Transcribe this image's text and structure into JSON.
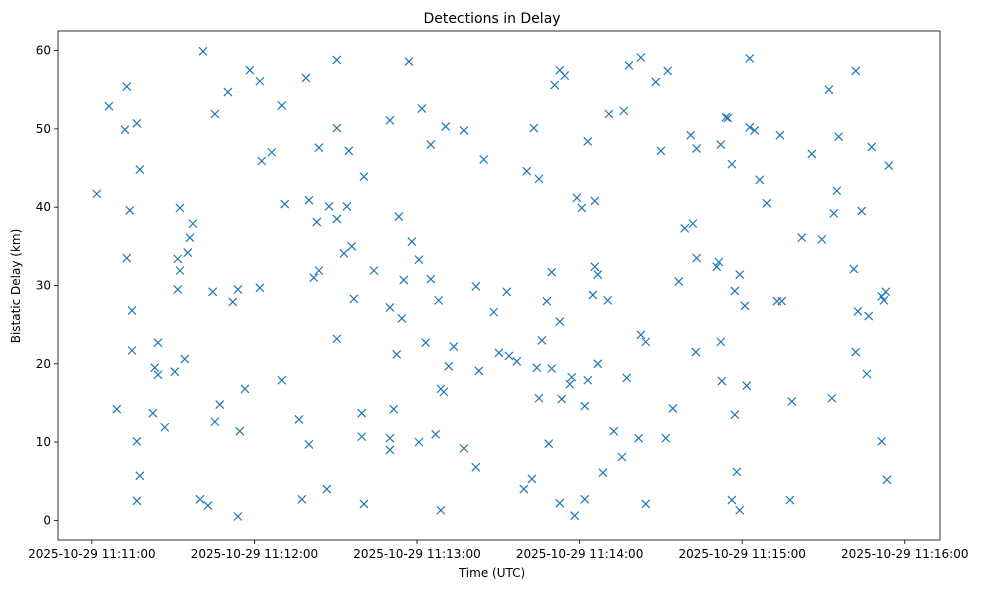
{
  "chart_data": {
    "type": "scatter",
    "title": "Detections in Delay",
    "xlabel": "Time (UTC)",
    "ylabel": "Bistatic Delay (km)",
    "x_unit": "seconds after 2025-10-29 11:11:00",
    "xlim": [
      -12.5,
      313
    ],
    "ylim": [
      -2.5,
      62.5
    ],
    "xticks": [
      0,
      60,
      120,
      180,
      240,
      300
    ],
    "xtick_labels": [
      "2025-10-29 11:11:00",
      "2025-10-29 11:12:00",
      "2025-10-29 11:13:00",
      "2025-10-29 11:14:00",
      "2025-10-29 11:15:00",
      "2025-10-29 11:16:00"
    ],
    "yticks": [
      0,
      10,
      20,
      30,
      40,
      50,
      60
    ],
    "ytick_labels": [
      "0",
      "10",
      "20",
      "30",
      "40",
      "50",
      "60"
    ],
    "grid": false,
    "marker": "x",
    "color": "#1f77b4",
    "points": [
      [
        1.8,
        41.7
      ],
      [
        6.3,
        52.9
      ],
      [
        9.2,
        14.2
      ],
      [
        12.2,
        49.9
      ],
      [
        12.9,
        55.4
      ],
      [
        12.9,
        33.5
      ],
      [
        14.0,
        39.6
      ],
      [
        14.8,
        26.8
      ],
      [
        14.8,
        21.7
      ],
      [
        16.6,
        50.7
      ],
      [
        16.6,
        10.1
      ],
      [
        16.6,
        2.5
      ],
      [
        17.7,
        44.8
      ],
      [
        17.7,
        5.7
      ],
      [
        22.5,
        13.7
      ],
      [
        23.2,
        19.5
      ],
      [
        24.4,
        22.7
      ],
      [
        24.4,
        18.6
      ],
      [
        26.9,
        11.9
      ],
      [
        30.6,
        19.0
      ],
      [
        31.7,
        33.4
      ],
      [
        31.7,
        29.5
      ],
      [
        32.5,
        39.9
      ],
      [
        32.5,
        31.9
      ],
      [
        34.3,
        20.6
      ],
      [
        35.4,
        34.2
      ],
      [
        36.2,
        36.1
      ],
      [
        37.3,
        37.9
      ],
      [
        39.9,
        2.7
      ],
      [
        41.0,
        59.9
      ],
      [
        42.8,
        1.9
      ],
      [
        44.6,
        29.2
      ],
      [
        45.4,
        51.9
      ],
      [
        45.4,
        12.6
      ],
      [
        47.2,
        14.8
      ],
      [
        50.2,
        54.7
      ],
      [
        52.0,
        27.9
      ],
      [
        53.9,
        29.5
      ],
      [
        53.9,
        0.5
      ],
      [
        54.6,
        11.4
      ],
      [
        56.5,
        16.8
      ],
      [
        58.3,
        57.5
      ],
      [
        62.0,
        56.1
      ],
      [
        62.0,
        29.7
      ],
      [
        62.7,
        45.9
      ],
      [
        66.4,
        47.0
      ],
      [
        70.1,
        53.0
      ],
      [
        70.1,
        17.9
      ],
      [
        71.2,
        40.4
      ],
      [
        76.4,
        12.9
      ],
      [
        77.5,
        2.7
      ],
      [
        79.0,
        56.5
      ],
      [
        80.1,
        40.9
      ],
      [
        80.1,
        9.7
      ],
      [
        81.9,
        31.0
      ],
      [
        83.0,
        38.1
      ],
      [
        83.8,
        47.6
      ],
      [
        83.8,
        31.9
      ],
      [
        86.7,
        4.0
      ],
      [
        87.5,
        40.1
      ],
      [
        90.4,
        58.8
      ],
      [
        90.4,
        50.1
      ],
      [
        90.4,
        38.5
      ],
      [
        90.4,
        23.2
      ],
      [
        93.0,
        34.1
      ],
      [
        94.1,
        40.1
      ],
      [
        94.8,
        47.2
      ],
      [
        95.9,
        35.0
      ],
      [
        96.7,
        28.3
      ],
      [
        99.6,
        10.7
      ],
      [
        99.6,
        13.7
      ],
      [
        100.4,
        43.9
      ],
      [
        100.4,
        2.1
      ],
      [
        104.1,
        31.9
      ],
      [
        110.0,
        51.1
      ],
      [
        110.0,
        27.2
      ],
      [
        110.0,
        10.5
      ],
      [
        110.0,
        9.0
      ],
      [
        111.4,
        14.2
      ],
      [
        112.5,
        21.2
      ],
      [
        113.3,
        38.8
      ],
      [
        114.4,
        25.8
      ],
      [
        115.1,
        30.7
      ],
      [
        117.0,
        58.6
      ],
      [
        118.1,
        35.6
      ],
      [
        120.7,
        33.3
      ],
      [
        120.7,
        10.0
      ],
      [
        121.8,
        52.6
      ],
      [
        123.2,
        22.7
      ],
      [
        125.1,
        48.0
      ],
      [
        125.1,
        30.8
      ],
      [
        126.9,
        11.0
      ],
      [
        128.0,
        28.1
      ],
      [
        128.8,
        16.8
      ],
      [
        128.8,
        1.3
      ],
      [
        129.9,
        16.4
      ],
      [
        130.6,
        50.3
      ],
      [
        131.7,
        19.7
      ],
      [
        133.6,
        22.2
      ],
      [
        137.3,
        49.8
      ],
      [
        137.3,
        9.2
      ],
      [
        141.7,
        29.9
      ],
      [
        141.7,
        6.8
      ],
      [
        142.8,
        19.1
      ],
      [
        144.6,
        46.1
      ],
      [
        148.3,
        26.6
      ],
      [
        150.2,
        21.4
      ],
      [
        153.1,
        29.2
      ],
      [
        153.9,
        21.0
      ],
      [
        156.8,
        20.3
      ],
      [
        159.4,
        4.0
      ],
      [
        160.5,
        44.6
      ],
      [
        162.4,
        5.3
      ],
      [
        163.1,
        50.1
      ],
      [
        164.2,
        19.5
      ],
      [
        165.0,
        15.6
      ],
      [
        165.0,
        43.6
      ],
      [
        166.1,
        23.0
      ],
      [
        167.9,
        28.0
      ],
      [
        168.6,
        9.8
      ],
      [
        169.7,
        31.7
      ],
      [
        169.7,
        19.4
      ],
      [
        170.8,
        55.6
      ],
      [
        172.7,
        57.5
      ],
      [
        172.7,
        25.4
      ],
      [
        172.7,
        2.2
      ],
      [
        173.4,
        15.5
      ],
      [
        174.5,
        56.8
      ],
      [
        176.4,
        17.4
      ],
      [
        177.1,
        18.3
      ],
      [
        178.2,
        0.6
      ],
      [
        179.0,
        41.2
      ],
      [
        180.8,
        39.9
      ],
      [
        181.9,
        14.6
      ],
      [
        181.9,
        2.7
      ],
      [
        183.0,
        48.4
      ],
      [
        183.0,
        17.9
      ],
      [
        184.9,
        28.8
      ],
      [
        185.6,
        40.8
      ],
      [
        185.6,
        32.4
      ],
      [
        186.7,
        31.4
      ],
      [
        186.7,
        20.0
      ],
      [
        188.6,
        6.1
      ],
      [
        190.4,
        28.1
      ],
      [
        190.8,
        51.9
      ],
      [
        192.6,
        11.4
      ],
      [
        195.6,
        8.1
      ],
      [
        196.3,
        52.3
      ],
      [
        197.4,
        18.2
      ],
      [
        198.2,
        58.1
      ],
      [
        201.8,
        10.5
      ],
      [
        202.6,
        59.1
      ],
      [
        202.6,
        23.7
      ],
      [
        204.4,
        22.8
      ],
      [
        204.4,
        2.1
      ],
      [
        208.1,
        56.0
      ],
      [
        210.0,
        47.2
      ],
      [
        211.8,
        10.5
      ],
      [
        212.5,
        57.4
      ],
      [
        214.4,
        14.3
      ],
      [
        216.6,
        30.5
      ],
      [
        218.8,
        37.3
      ],
      [
        221.0,
        49.2
      ],
      [
        221.8,
        37.9
      ],
      [
        222.9,
        21.5
      ],
      [
        223.2,
        47.5
      ],
      [
        223.2,
        33.5
      ],
      [
        230.6,
        32.4
      ],
      [
        231.4,
        33.0
      ],
      [
        232.1,
        48.0
      ],
      [
        232.1,
        22.8
      ],
      [
        232.5,
        17.8
      ],
      [
        234.0,
        51.5
      ],
      [
        234.7,
        51.4
      ],
      [
        236.2,
        45.5
      ],
      [
        236.2,
        2.6
      ],
      [
        237.3,
        29.3
      ],
      [
        237.3,
        13.5
      ],
      [
        238.0,
        6.2
      ],
      [
        239.1,
        31.4
      ],
      [
        239.1,
        1.3
      ],
      [
        241.0,
        27.4
      ],
      [
        241.7,
        17.2
      ],
      [
        242.8,
        50.2
      ],
      [
        242.8,
        59.0
      ],
      [
        244.6,
        49.8
      ],
      [
        246.5,
        43.5
      ],
      [
        249.1,
        40.5
      ],
      [
        252.8,
        28.0
      ],
      [
        253.9,
        49.2
      ],
      [
        254.6,
        28.0
      ],
      [
        257.6,
        2.6
      ],
      [
        258.3,
        15.2
      ],
      [
        262.0,
        36.1
      ],
      [
        265.7,
        46.8
      ],
      [
        269.4,
        35.9
      ],
      [
        272.0,
        55.0
      ],
      [
        273.1,
        15.6
      ],
      [
        273.8,
        39.2
      ],
      [
        274.9,
        42.1
      ],
      [
        275.6,
        49.0
      ],
      [
        281.2,
        32.1
      ],
      [
        281.9,
        57.4
      ],
      [
        281.9,
        21.5
      ],
      [
        282.7,
        26.7
      ],
      [
        284.1,
        39.5
      ],
      [
        286.0,
        18.7
      ],
      [
        286.7,
        26.1
      ],
      [
        287.8,
        47.7
      ],
      [
        291.5,
        28.6
      ],
      [
        291.5,
        10.1
      ],
      [
        292.3,
        28.1
      ],
      [
        293.0,
        29.2
      ],
      [
        293.4,
        5.2
      ],
      [
        294.1,
        45.3
      ]
    ]
  }
}
